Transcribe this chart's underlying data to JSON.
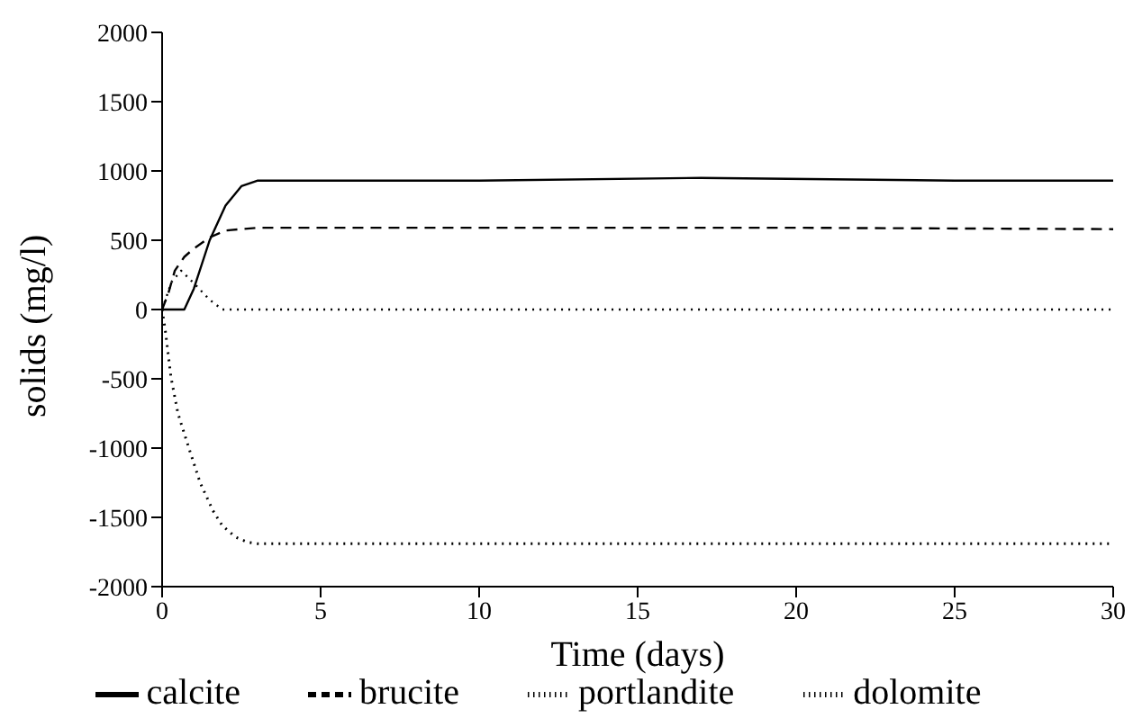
{
  "chart_data": {
    "type": "line",
    "xlabel": "Time (days)",
    "ylabel": "solids (mg/l)",
    "xlim": [
      0,
      30
    ],
    "xticks": [
      0,
      5,
      10,
      15,
      20,
      25,
      30
    ],
    "ylim": [
      -2000,
      2000
    ],
    "yticks": [
      -2000,
      -1500,
      -1000,
      -500,
      0,
      500,
      1000,
      1500,
      2000
    ],
    "grid": false,
    "legend": "bottom",
    "marker": "none",
    "series": [
      {
        "name": "calcite",
        "color": "#000000",
        "line_style": "solid",
        "x": [
          0,
          0.5,
          0.7,
          1,
          1.5,
          2,
          2.5,
          3,
          5,
          10,
          17,
          25,
          30
        ],
        "values": [
          0,
          0,
          0,
          150,
          500,
          750,
          890,
          930,
          930,
          930,
          950,
          930,
          930
        ]
      },
      {
        "name": "brucite",
        "color": "#000000",
        "line_style": "dashed",
        "x": [
          0,
          0.2,
          0.4,
          0.7,
          1,
          1.5,
          2,
          2.5,
          3,
          5,
          10,
          20,
          30
        ],
        "values": [
          0,
          120,
          280,
          380,
          440,
          520,
          570,
          580,
          590,
          590,
          590,
          590,
          580
        ]
      },
      {
        "name": "portlandite",
        "color": "#000000",
        "line_style": "dotted",
        "x": [
          0,
          0.3,
          0.6,
          1,
          1.5,
          1.9,
          2.5,
          30
        ],
        "values": [
          0,
          200,
          280,
          190,
          70,
          0,
          0,
          0
        ]
      },
      {
        "name": "dolomite",
        "color": "#000000",
        "line_style": "dotted",
        "x": [
          0,
          0.1,
          0.28,
          0.5,
          0.83,
          1.2,
          1.6,
          1.9,
          2.3,
          2.7,
          3,
          30
        ],
        "values": [
          0,
          -150,
          -490,
          -750,
          -990,
          -1250,
          -1450,
          -1560,
          -1640,
          -1680,
          -1690,
          -1690
        ]
      }
    ]
  }
}
